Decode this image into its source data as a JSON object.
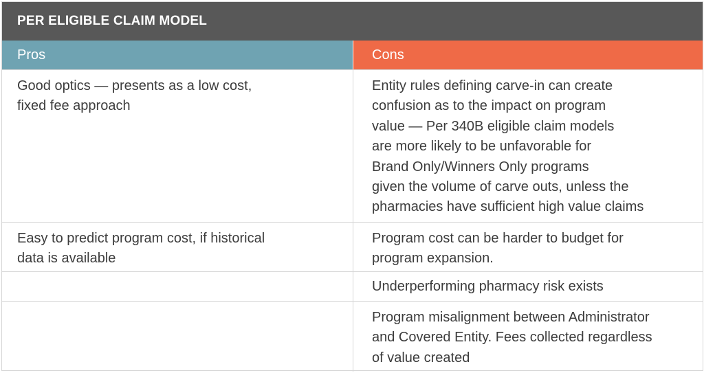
{
  "title": "PER ELIGIBLE CLAIM MODEL",
  "headers": {
    "pros": "Pros",
    "cons": "Cons"
  },
  "colors": {
    "title_bg": "#585858",
    "pros_header_bg": "#6fa3b2",
    "cons_header_bg": "#ef6a47"
  },
  "rows": [
    {
      "pros": "Good optics — presents as a low cost,\nfixed fee approach",
      "cons": "Entity rules defining carve-in can create\nconfusion as to the impact on program\nvalue — Per 340B eligible claim models\nare more likely to be unfavorable for\nBrand Only/Winners Only programs\ngiven the volume of carve outs, unless the\npharmacies have sufficient high value claims"
    },
    {
      "pros": "Easy to predict program cost, if historical\ndata is available",
      "cons": "Program cost can be harder to budget for\nprogram expansion."
    },
    {
      "pros": "",
      "cons": "Underperforming pharmacy risk exists"
    },
    {
      "pros": "",
      "cons": "Program misalignment between Administrator\nand Covered Entity. Fees collected regardless\nof value created"
    }
  ]
}
